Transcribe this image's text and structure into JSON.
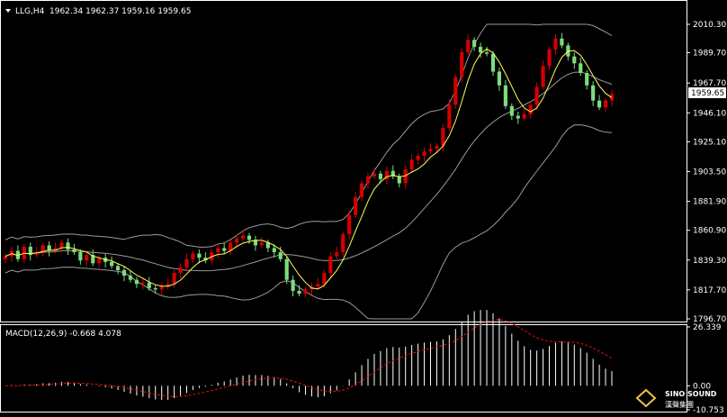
{
  "header": {
    "symbol": "LLG,H4",
    "ohlc": "1962.34 1962.37 1959.16 1959.65"
  },
  "price_panel": {
    "current_price_label": "1959.65",
    "y_ticks": [
      "2010.30",
      "1989.70",
      "1967.70",
      "1946.10",
      "1925.10",
      "1903.50",
      "1881.90",
      "1860.90",
      "1839.30",
      "1817.70",
      "1796.70"
    ]
  },
  "macd_panel": {
    "label": "MACD(12,26,9) -0.668 4.078",
    "y_ticks": [
      "26.339",
      "0.00",
      "-10.753"
    ]
  },
  "watermark": {
    "brand": "SINO SOUND",
    "sub": "漢聲集團"
  },
  "colors": {
    "background": "#000000",
    "bull_candle": "#d40000",
    "bear_candle": "#7ddc7d",
    "bollinger": "#9a9a9a",
    "ma_fast": "#ffff55",
    "macd_histogram": "#ffffff",
    "macd_signal": "#dd1111"
  },
  "chart_data": [
    {
      "type": "candlestick",
      "title": "LLG,H4",
      "ylim": [
        1796.7,
        2010.3
      ],
      "indicators": [
        "Bollinger Bands (upper / middle / lower)",
        "Moving average"
      ],
      "closes": [
        1842,
        1846,
        1840,
        1849,
        1843,
        1845,
        1850,
        1846,
        1848,
        1852,
        1847,
        1845,
        1839,
        1843,
        1837,
        1841,
        1838,
        1835,
        1832,
        1828,
        1825,
        1822,
        1823,
        1819,
        1818,
        1820,
        1822,
        1830,
        1834,
        1840,
        1844,
        1841,
        1839,
        1845,
        1848,
        1846,
        1852,
        1855,
        1857,
        1854,
        1850,
        1852,
        1848,
        1845,
        1840,
        1825,
        1817,
        1815,
        1818,
        1820,
        1822,
        1830,
        1842,
        1845,
        1858,
        1872,
        1885,
        1895,
        1900,
        1902,
        1898,
        1904,
        1900,
        1895,
        1905,
        1912,
        1915,
        1918,
        1920,
        1922,
        1935,
        1952,
        1972,
        1990,
        1999,
        1994,
        1990,
        1989,
        1976,
        1966,
        1951,
        1944,
        1942,
        1945,
        1952,
        1965,
        1980,
        1992,
        2000,
        1995,
        1987,
        1982,
        1975,
        1966,
        1955,
        1950,
        1955,
        1959.65
      ],
      "current": 1959.65
    },
    {
      "type": "bar",
      "title": "MACD(12,26,9)",
      "ylim": [
        -10.753,
        26.339
      ],
      "macd": -0.668,
      "signal": 4.078
    }
  ]
}
